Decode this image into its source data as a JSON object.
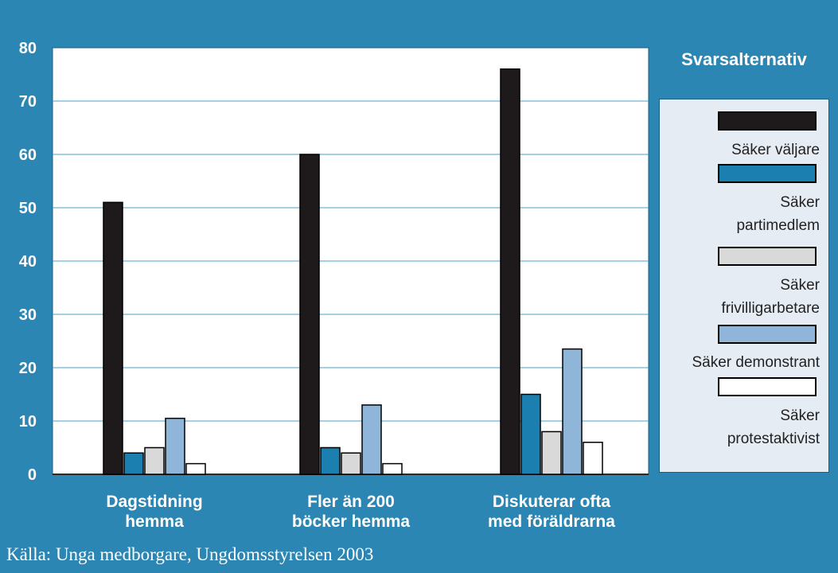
{
  "chart_data": {
    "type": "bar",
    "categories": [
      [
        "Dagstidning",
        "hemma"
      ],
      [
        "Fler än 200",
        "böcker hemma"
      ],
      [
        "Diskuterar ofta",
        "med föräldrarna"
      ]
    ],
    "series": [
      {
        "name": "Säker väljare",
        "values": [
          51,
          60,
          76
        ],
        "color": "#1e1a1c"
      },
      {
        "name": "Säker partimedlem",
        "values": [
          4,
          5,
          15
        ],
        "color": "#1b7fb0"
      },
      {
        "name": "Säker frivilligarbetare",
        "values": [
          5,
          4,
          8
        ],
        "color": "#d9d9d9"
      },
      {
        "name": "Säker demonstrant",
        "values": [
          10.5,
          13,
          23.5
        ],
        "color": "#8fb6d9"
      },
      {
        "name": "Säker protestaktivist",
        "values": [
          2,
          2,
          6
        ],
        "color": "#ffffff"
      }
    ],
    "ylim": [
      0,
      80
    ],
    "yticks": [
      0,
      10,
      20,
      30,
      40,
      50,
      60,
      70,
      80
    ],
    "grid": true,
    "legend_title": "Svarsalternativ",
    "legend_labels": [
      [
        "Säker väljare"
      ],
      [
        "Säker",
        "partimedlem"
      ],
      [
        "Säker",
        "frivilligarbetare"
      ],
      [
        "Säker demonstrant"
      ],
      [
        "Säker",
        "protestaktivist"
      ]
    ],
    "legend_position": "right"
  },
  "source": "Källa: Unga medborgare, Ungdomsstyrelsen 2003"
}
